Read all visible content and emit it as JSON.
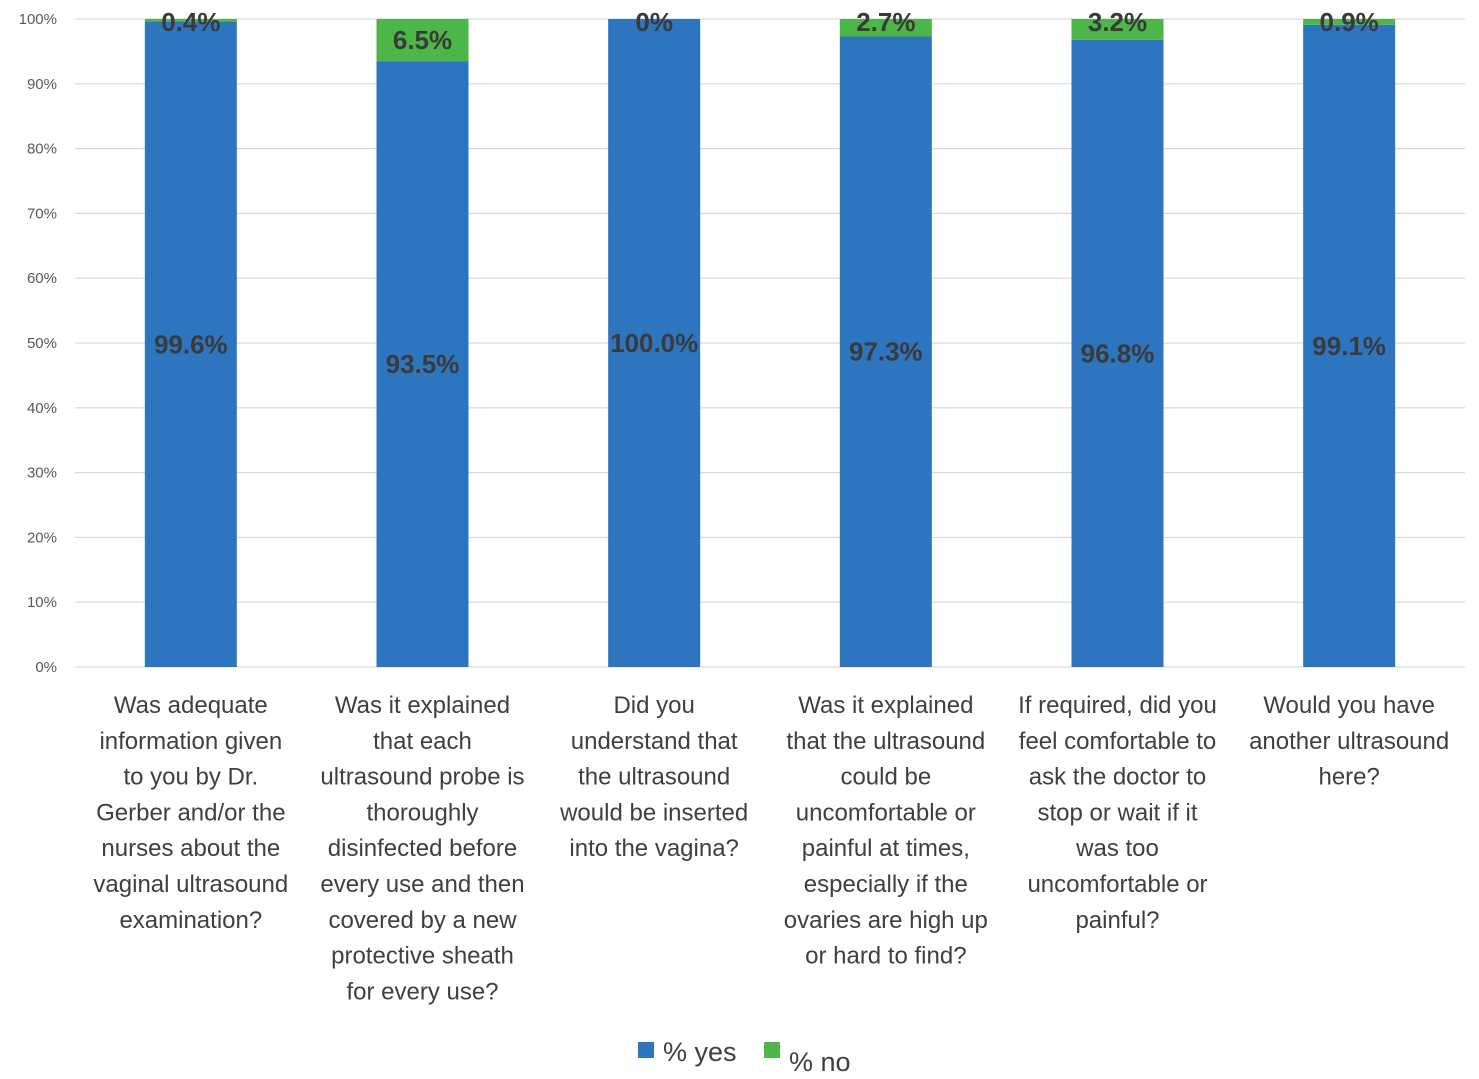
{
  "chart_data": {
    "type": "bar",
    "stacked": true,
    "categories": [
      "Was adequate information given to you by Dr. Gerber and/or the nurses about the vaginal ultrasound examination?",
      "Was it explained that each ultrasound probe is thoroughly disinfected before every use and then covered by a new protective sheath for every use?",
      "Did you understand that the ultrasound would be inserted into the vagina?",
      "Was it explained that the ultrasound could be uncomfortable or painful at times, especially if the ovaries are high up or hard to find?",
      "If required, did you feel comfortable to ask the doctor to stop or wait if it was too uncomfortable or painful?",
      "Would you have another ultrasound here?"
    ],
    "category_lines": [
      [
        "Was adequate",
        "information given",
        "to you by Dr.",
        "Gerber and/or the",
        "nurses about the",
        "vaginal ultrasound",
        "examination?"
      ],
      [
        "Was it explained",
        "that each",
        "ultrasound probe is",
        "thoroughly",
        "disinfected before",
        "every use and then",
        "covered by a new",
        "protective sheath",
        "for every use?"
      ],
      [
        "Did you",
        "understand that",
        "the ultrasound",
        "would be inserted",
        "into the vagina?"
      ],
      [
        "Was it explained",
        "that the ultrasound",
        "could be",
        "uncomfortable or",
        "painful at times,",
        "especially if the",
        "ovaries are high up",
        "or hard to find?"
      ],
      [
        "If required, did you",
        "feel comfortable to",
        "ask the doctor to",
        "stop or wait if it",
        "was too",
        "uncomfortable or",
        "painful?"
      ],
      [
        "Would you have",
        "another ultrasound",
        "here?"
      ]
    ],
    "series": [
      {
        "name": "% yes",
        "values": [
          99.6,
          93.5,
          100.0,
          97.3,
          96.8,
          99.1
        ],
        "labels": [
          "99.6%",
          "93.5%",
          "100.0%",
          "97.3%",
          "96.8%",
          "99.1%"
        ],
        "color": "#2e75c0"
      },
      {
        "name": "% no",
        "values": [
          0.4,
          6.5,
          0,
          2.7,
          3.2,
          0.9
        ],
        "labels": [
          "0.4%",
          "6.5%",
          "0%",
          "2.7%",
          "3.2%",
          "0.9%"
        ],
        "color": "#4cb648"
      }
    ],
    "y_ticks": [
      "0%",
      "10%",
      "20%",
      "30%",
      "40%",
      "50%",
      "60%",
      "70%",
      "80%",
      "90%",
      "100%"
    ],
    "ylim": [
      0,
      100
    ],
    "grid": true,
    "legend": "bottom",
    "title": "",
    "xlabel": "",
    "ylabel": ""
  }
}
